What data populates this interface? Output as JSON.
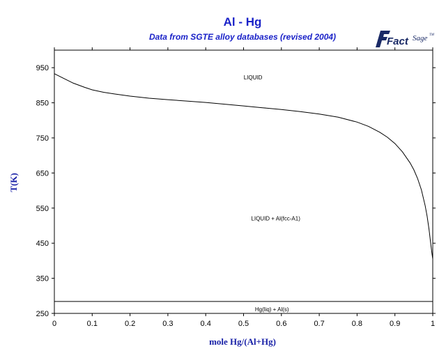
{
  "chart_data": {
    "type": "line",
    "title": "Al - Hg",
    "subtitle": "Data from SGTE alloy databases (revised 2004)",
    "xlabel": "mole Hg/(Al+Hg)",
    "ylabel": "T(K)",
    "xlim": [
      0,
      1
    ],
    "ylim": [
      250,
      1000
    ],
    "xticks": [
      0,
      0.1,
      0.2,
      0.3,
      0.4,
      0.5,
      0.6,
      0.7,
      0.8,
      0.9,
      1
    ],
    "xtick_labels": [
      "0",
      "0.1",
      "0.2",
      "0.3",
      "0.4",
      "0.5",
      "0.6",
      "0.7",
      "0.8",
      "0.9",
      "1"
    ],
    "yticks": [
      250,
      350,
      450,
      550,
      650,
      750,
      850,
      950
    ],
    "ytick_labels": [
      "250",
      "350",
      "450",
      "550",
      "650",
      "750",
      "850",
      "950"
    ],
    "grid": false,
    "series": [
      {
        "x": [
          0,
          0.02,
          0.05,
          0.08,
          0.1,
          0.13,
          0.16,
          0.2,
          0.25,
          0.3,
          0.35,
          0.4,
          0.45,
          0.5,
          0.55,
          0.6,
          0.65,
          0.7,
          0.75,
          0.8,
          0.83,
          0.86,
          0.88,
          0.9,
          0.92,
          0.94,
          0.95,
          0.96,
          0.97,
          0.98,
          0.985,
          0.99,
          0.995,
          0.998,
          1.0
        ],
        "y": [
          933,
          922,
          906,
          894,
          887,
          880,
          875,
          869,
          863,
          859,
          855,
          851,
          846,
          841,
          836,
          831,
          825,
          818,
          809,
          795,
          783,
          766,
          752,
          734,
          710,
          679,
          659,
          634,
          602,
          557,
          527,
          490,
          445,
          420,
          405
        ]
      },
      {
        "x": [
          0,
          1
        ],
        "y": [
          284,
          284
        ]
      }
    ],
    "annotations": [
      {
        "text": "LIQUID",
        "x": 0.525,
        "y": 917
      },
      {
        "text": "LIQUID + Al(fcc-A1)",
        "x": 0.585,
        "y": 515
      },
      {
        "text": "Hg(liq) + Al(s)",
        "x": 0.575,
        "y": 256
      }
    ]
  },
  "logo": {
    "word1": "Fact",
    "word2": "Sage",
    "mark": "TM"
  }
}
